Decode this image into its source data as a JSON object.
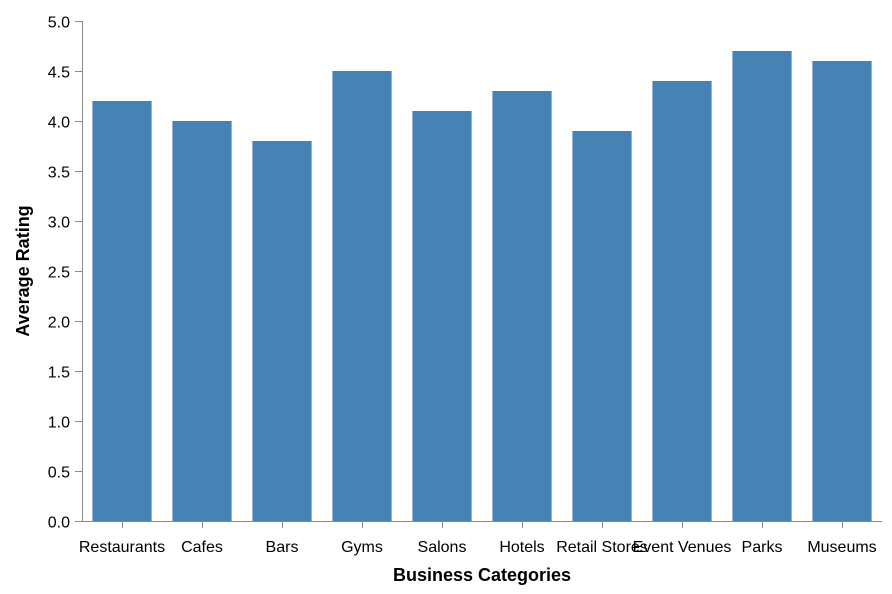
{
  "chart_data": {
    "type": "bar",
    "categories": [
      "Restaurants",
      "Cafes",
      "Bars",
      "Gyms",
      "Salons",
      "Hotels",
      "Retail Stores",
      "Event Venues",
      "Parks",
      "Museums"
    ],
    "values": [
      4.2,
      4.0,
      3.8,
      4.5,
      4.1,
      4.3,
      3.9,
      4.4,
      4.7,
      4.6
    ],
    "title": "",
    "xlabel": "Business Categories",
    "ylabel": "Average Rating",
    "ylim": [
      0,
      5
    ],
    "yticks": [
      "0.0",
      "0.5",
      "1.0",
      "1.5",
      "2.0",
      "2.5",
      "3.0",
      "3.5",
      "4.0",
      "4.5",
      "5.0"
    ],
    "grid": false,
    "colors": {
      "bar": "#4682b4",
      "axis": "#888888",
      "text": "#000000"
    }
  }
}
